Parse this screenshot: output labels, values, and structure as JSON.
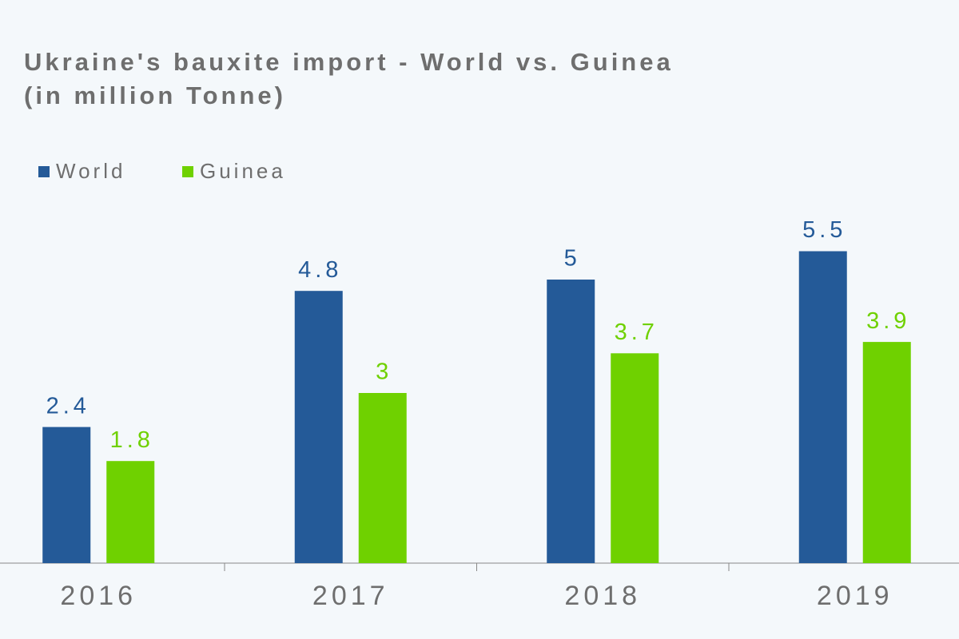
{
  "chart_data": {
    "type": "bar",
    "title": "Ukraine's bauxite import - World vs. Guinea",
    "subtitle": "(in million Tonne)",
    "categories": [
      "2016",
      "2017",
      "2018",
      "2019"
    ],
    "series": [
      {
        "name": "World",
        "color": "#245a98",
        "values": [
          2.4,
          4.8,
          5,
          5.5
        ]
      },
      {
        "name": "Guinea",
        "color": "#6fd100",
        "values": [
          1.8,
          3,
          3.7,
          3.9
        ]
      }
    ],
    "ylim": [
      0,
      6
    ],
    "legend": "top-left"
  }
}
